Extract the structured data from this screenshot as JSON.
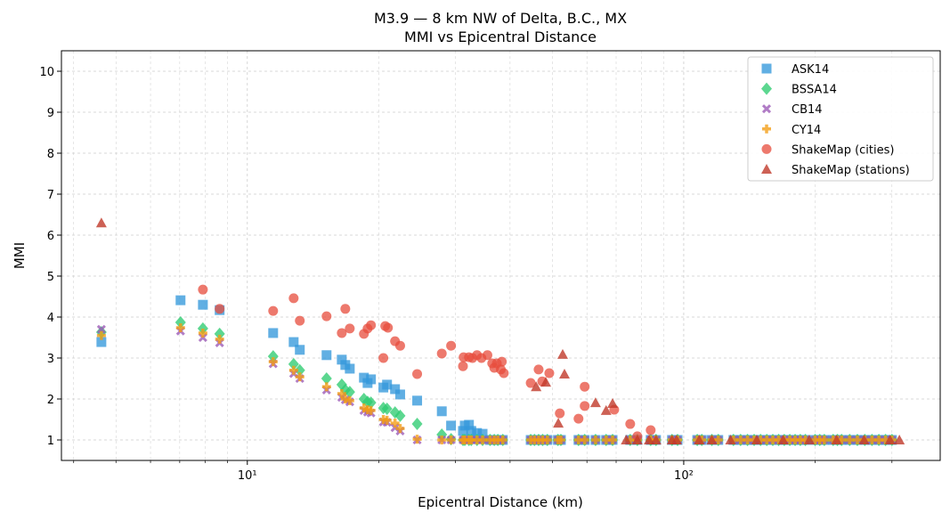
{
  "chart_data": {
    "type": "scatter",
    "title": "M3.9 — 8 km NW of Delta, B.C., MX",
    "subtitle": "MMI vs Epicentral Distance",
    "xlabel": "Epicentral Distance (km)",
    "ylabel": "MMI",
    "xscale": "log",
    "xlim": [
      3.75,
      387
    ],
    "ylim": [
      0.5,
      10.5
    ],
    "xticks": [
      {
        "value": 10,
        "label": "10¹"
      },
      {
        "value": 100,
        "label": "10²"
      }
    ],
    "yticks": [
      {
        "value": 1,
        "label": "1"
      },
      {
        "value": 2,
        "label": "2"
      },
      {
        "value": 3,
        "label": "3"
      },
      {
        "value": 4,
        "label": "4"
      },
      {
        "value": 5,
        "label": "5"
      },
      {
        "value": 6,
        "label": "6"
      },
      {
        "value": 7,
        "label": "7"
      },
      {
        "value": 8,
        "label": "8"
      },
      {
        "value": 9,
        "label": "9"
      },
      {
        "value": 10,
        "label": "10"
      }
    ],
    "grid": true,
    "legend_position": "top-right",
    "gmpe_x": [
      4.63,
      7.03,
      7.91,
      8.64,
      11.46,
      12.77,
      13.19,
      15.19,
      16.46,
      16.77,
      17.17,
      18.5,
      18.86,
      19.2,
      20.5,
      20.9,
      21.8,
      22.4,
      24.5,
      27.9,
      29.3,
      31.2,
      31.5,
      32.2,
      32.6,
      33.6,
      34.6,
      36.0,
      36.8,
      37.5,
      38.5,
      44.6,
      45.5,
      46.5,
      47.5,
      48.7,
      51.5,
      52.3,
      57.4,
      59.3,
      62.8,
      66.4,
      68.7,
      75.4,
      78.3,
      84,
      86.4,
      94,
      96.8,
      107.4,
      110,
      116,
      120,
      130,
      135,
      140,
      145,
      150,
      155,
      160,
      165,
      170,
      175,
      180,
      185,
      190,
      200,
      205,
      210,
      220,
      225,
      230,
      240,
      250,
      260,
      270,
      280,
      290,
      300
    ],
    "series": [
      {
        "name": "ASK14",
        "marker": "square",
        "color": "#3498db",
        "y": [
          3.39,
          4.41,
          4.3,
          4.17,
          3.61,
          3.39,
          3.2,
          3.07,
          2.96,
          2.83,
          2.74,
          2.52,
          2.39,
          2.48,
          2.28,
          2.35,
          2.24,
          2.11,
          1.96,
          1.7,
          1.35,
          1.22,
          1.35,
          1.37,
          1.22,
          1.17,
          1.15,
          1,
          1,
          1,
          1,
          1,
          1,
          1,
          1,
          1,
          1,
          1,
          1,
          1,
          1,
          1,
          1,
          1,
          1,
          1,
          1,
          1,
          1,
          1,
          1,
          1,
          1,
          1,
          1,
          1,
          1,
          1,
          1,
          1,
          1,
          1,
          1,
          1,
          1,
          1,
          1,
          1,
          1,
          1,
          1,
          1,
          1,
          1,
          1,
          1,
          1,
          1,
          1
        ]
      },
      {
        "name": "BSSA14",
        "marker": "diamond",
        "color": "#2ecc71",
        "y": [
          3.63,
          3.87,
          3.72,
          3.59,
          3.04,
          2.85,
          2.7,
          2.5,
          2.35,
          2.22,
          2.17,
          2.0,
          1.93,
          1.91,
          1.78,
          1.76,
          1.67,
          1.59,
          1.39,
          1.13,
          1.02,
          1,
          1,
          1,
          1,
          1,
          1,
          1,
          1,
          1,
          1,
          1,
          1,
          1,
          1,
          1,
          1,
          1,
          1,
          1,
          1,
          1,
          1,
          1,
          1,
          1,
          1,
          1,
          1,
          1,
          1,
          1,
          1,
          1,
          1,
          1,
          1,
          1,
          1,
          1,
          1,
          1,
          1,
          1,
          1,
          1,
          1,
          1,
          1,
          1,
          1,
          1,
          1,
          1,
          1,
          1,
          1,
          1,
          1
        ]
      },
      {
        "name": "CB14",
        "marker": "x",
        "color": "#9b59b6",
        "y": [
          3.7,
          3.66,
          3.5,
          3.37,
          2.86,
          2.62,
          2.5,
          2.22,
          2.04,
          1.98,
          1.93,
          1.72,
          1.68,
          1.66,
          1.44,
          1.43,
          1.3,
          1.22,
          1,
          1,
          1,
          1,
          1,
          1,
          1,
          1,
          1,
          1,
          1,
          1,
          1,
          1,
          1,
          1,
          1,
          1,
          1,
          1,
          1,
          1,
          1,
          1,
          1,
          1,
          1,
          1,
          1,
          1,
          1,
          1,
          1,
          1,
          1,
          1,
          1,
          1,
          1,
          1,
          1,
          1,
          1,
          1,
          1,
          1,
          1,
          1,
          1,
          1,
          1,
          1,
          1,
          1,
          1,
          1,
          1,
          1,
          1,
          1,
          1
        ]
      },
      {
        "name": "CY14",
        "marker": "plus",
        "color": "#f39c12",
        "y": [
          3.55,
          3.74,
          3.61,
          3.46,
          2.91,
          2.7,
          2.54,
          2.3,
          2.13,
          2.0,
          1.96,
          1.78,
          1.74,
          1.72,
          1.5,
          1.48,
          1.41,
          1.28,
          1.02,
          1,
          1,
          1,
          1,
          1,
          1,
          1,
          1,
          1,
          1,
          1,
          1,
          1,
          1,
          1,
          1,
          1,
          1,
          1,
          1,
          1,
          1,
          1,
          1,
          1,
          1,
          1,
          1,
          1,
          1,
          1,
          1,
          1,
          1,
          1,
          1,
          1,
          1,
          1,
          1,
          1,
          1,
          1,
          1,
          1,
          1,
          1,
          1,
          1,
          1,
          1,
          1,
          1,
          1,
          1,
          1,
          1,
          1,
          1,
          1
        ]
      },
      {
        "name": "ShakeMap (cities)",
        "marker": "circle",
        "color": "#e74c3c",
        "points": [
          [
            7.91,
            4.67
          ],
          [
            8.64,
            4.2
          ],
          [
            11.46,
            4.15
          ],
          [
            12.77,
            4.46
          ],
          [
            13.19,
            3.91
          ],
          [
            15.19,
            4.02
          ],
          [
            16.46,
            3.61
          ],
          [
            16.77,
            4.2
          ],
          [
            17.17,
            3.72
          ],
          [
            18.5,
            3.59
          ],
          [
            18.86,
            3.72
          ],
          [
            19.2,
            3.8
          ],
          [
            20.5,
            3.0
          ],
          [
            20.7,
            3.78
          ],
          [
            21.0,
            3.74
          ],
          [
            21.8,
            3.41
          ],
          [
            22.4,
            3.3
          ],
          [
            24.5,
            2.61
          ],
          [
            27.9,
            3.11
          ],
          [
            29.3,
            3.3
          ],
          [
            31.2,
            2.8
          ],
          [
            31.3,
            3.02
          ],
          [
            32.2,
            3.02
          ],
          [
            32.8,
            3.0
          ],
          [
            33.6,
            3.07
          ],
          [
            34.4,
            3.0
          ],
          [
            35.5,
            3.07
          ],
          [
            36.4,
            2.87
          ],
          [
            36.8,
            2.76
          ],
          [
            37.3,
            2.87
          ],
          [
            38.1,
            2.72
          ],
          [
            38.3,
            2.91
          ],
          [
            38.7,
            2.63
          ],
          [
            44.6,
            2.39
          ],
          [
            46.5,
            2.72
          ],
          [
            47.4,
            2.43
          ],
          [
            49.2,
            2.63
          ],
          [
            52.0,
            1.65
          ],
          [
            57.4,
            1.52
          ],
          [
            59.3,
            2.3
          ],
          [
            59.3,
            1.83
          ],
          [
            69.3,
            1.74
          ],
          [
            75.4,
            1.39
          ],
          [
            78.3,
            1.09
          ],
          [
            84,
            1.24
          ]
        ]
      },
      {
        "name": "ShakeMap (stations)",
        "marker": "triangle",
        "color": "#c0392b",
        "points": [
          [
            4.63,
            6.3
          ],
          [
            45.9,
            2.3
          ],
          [
            48.3,
            2.41
          ],
          [
            51.6,
            1.41
          ],
          [
            52.8,
            3.09
          ],
          [
            53.3,
            2.61
          ],
          [
            62.8,
            1.91
          ],
          [
            66.4,
            1.72
          ],
          [
            68.7,
            1.89
          ],
          [
            73.8,
            1
          ],
          [
            78.3,
            1
          ],
          [
            83.3,
            1
          ],
          [
            86.4,
            1
          ],
          [
            94,
            1
          ],
          [
            96.3,
            1
          ],
          [
            108.5,
            1
          ],
          [
            116,
            1
          ],
          [
            128,
            1
          ],
          [
            147,
            1
          ],
          [
            169,
            1
          ],
          [
            194,
            1
          ],
          [
            224,
            1
          ],
          [
            259,
            1
          ],
          [
            297,
            1
          ],
          [
            312,
            1
          ]
        ]
      }
    ]
  }
}
